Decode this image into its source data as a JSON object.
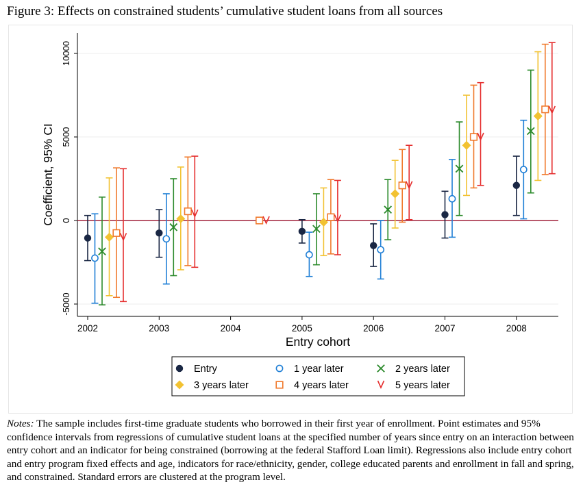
{
  "figure": {
    "title": "Figure 3: Effects on constrained students’ cumulative student loans from all sources"
  },
  "notes": {
    "label": "Notes:",
    "text": " The sample includes first-time graduate students who borrowed in their first year of enrollment. Point estimates and 95% confidence intervals from regressions of cumulative student loans at the specified number of years since entry on an interaction between entry cohort and an indicator for being constrained (borrowing at the federal Stafford Loan limit). Regressions also include entry cohort and entry program fixed effects and age, indicators for race/ethnicity, gender, college educated parents and enrollment in fall and spring, and constrained. Standard errors are clustered at the program level."
  },
  "chart_data": {
    "type": "scatter",
    "subtype": "coefficient plot with 95% confidence intervals",
    "xlabel": "Entry cohort",
    "ylabel": "Coefficient, 95% CI",
    "categories": [
      "2002",
      "2003",
      "2004",
      "2005",
      "2006",
      "2007",
      "2008"
    ],
    "yticks": [
      -5000,
      0,
      5000,
      10000
    ],
    "ytick_labels": [
      "-5000",
      "0",
      "5000",
      "10000"
    ],
    "ylim": [
      -5700,
      10300
    ],
    "reference_line": {
      "y": 0,
      "color": "#a0203a"
    },
    "grid": "horizontal",
    "legend_position": "bottom-center",
    "series": [
      {
        "name": "Entry",
        "color": "#1a2744",
        "marker": "filled-circle",
        "values": [
          -1050,
          -750,
          null,
          -650,
          -1500,
          350,
          2100
        ],
        "ci_low": [
          -2400,
          -2200,
          null,
          -1350,
          -2750,
          -1050,
          300
        ],
        "ci_high": [
          300,
          650,
          null,
          50,
          -200,
          1750,
          3850
        ]
      },
      {
        "name": "1 year later",
        "color": "#1f7fd6",
        "marker": "hollow-circle",
        "values": [
          -2250,
          -1100,
          null,
          -2050,
          -1750,
          1300,
          3050
        ],
        "ci_low": [
          -4950,
          -3800,
          null,
          -3350,
          -3500,
          -1000,
          100
        ],
        "ci_high": [
          400,
          1600,
          null,
          -700,
          0,
          3650,
          6000
        ]
      },
      {
        "name": "2 years later",
        "color": "#2b8a2b",
        "marker": "x",
        "values": [
          -1850,
          -400,
          null,
          -500,
          650,
          3100,
          5350
        ],
        "ci_low": [
          -5050,
          -3300,
          null,
          -2650,
          -1150,
          300,
          1650
        ],
        "ci_high": [
          1400,
          2500,
          null,
          1600,
          2450,
          5900,
          9000
        ]
      },
      {
        "name": "3 years later",
        "color": "#f2c232",
        "marker": "filled-diamond",
        "values": [
          -1000,
          100,
          null,
          -100,
          1600,
          4500,
          6250
        ],
        "ci_low": [
          -4500,
          -2950,
          null,
          -2100,
          -450,
          1500,
          2400
        ],
        "ci_high": [
          2550,
          3200,
          null,
          1950,
          3600,
          7500,
          10100
        ]
      },
      {
        "name": "4 years later",
        "color": "#f0792b",
        "marker": "hollow-square",
        "values": [
          -750,
          550,
          0,
          200,
          2100,
          5000,
          6650
        ],
        "ci_low": [
          -4600,
          -2700,
          null,
          -2000,
          -100,
          1950,
          2750
        ],
        "ci_high": [
          3150,
          3800,
          null,
          2450,
          4250,
          8100,
          10550
        ]
      },
      {
        "name": "5 years later",
        "color": "#e52e2e",
        "marker": "v",
        "values": [
          -1000,
          400,
          0,
          100,
          2100,
          5000,
          6600
        ],
        "ci_low": [
          -4850,
          -2800,
          null,
          -2050,
          50,
          2100,
          2800
        ],
        "ci_high": [
          3100,
          3850,
          null,
          2400,
          4500,
          8250,
          10650
        ]
      }
    ]
  }
}
